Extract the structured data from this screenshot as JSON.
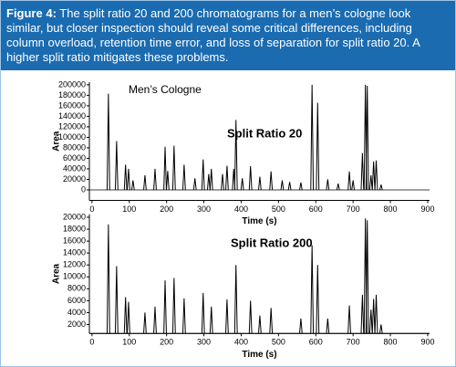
{
  "figure": {
    "label": "Figure 4:",
    "caption": "The split ratio 20 and 200 chromatograms for a men’s cologne look similar, but closer inspection should reveal some critical differences, including column overload, retention time error, and loss of separation for split ratio 20. A higher split ratio mitigates these problems."
  },
  "chart_data": [
    {
      "type": "chromatogram",
      "annotations": [
        "Men’s Cologne",
        "Split Ratio 20"
      ],
      "xlabel": "Time (s)",
      "ylabel": "Area",
      "color": "#000000",
      "x": [
        44,
        66,
        90,
        98,
        110,
        142,
        169,
        196,
        203,
        220,
        247,
        276,
        298,
        313,
        320,
        350,
        362,
        380,
        386,
        403,
        425,
        450,
        480,
        510,
        530,
        560,
        590,
        605,
        632,
        660,
        690,
        700,
        725,
        733,
        738,
        748,
        755,
        762,
        775
      ],
      "values": [
        183000,
        93000,
        48000,
        40000,
        18000,
        28000,
        40000,
        82000,
        36000,
        84000,
        48000,
        22000,
        58000,
        30000,
        40000,
        30000,
        46000,
        40000,
        133000,
        22000,
        45000,
        25000,
        35000,
        18000,
        15000,
        14000,
        200000,
        166000,
        20000,
        12000,
        35000,
        18000,
        70000,
        200000,
        198000,
        28000,
        54000,
        56000,
        10000
      ],
      "xlim": [
        -7,
        905
      ],
      "xticks": [
        0,
        100,
        200,
        300,
        400,
        500,
        600,
        700,
        800,
        900
      ],
      "ylim": [
        -20000,
        205000
      ],
      "yticks": [
        0,
        20000,
        40000,
        60000,
        80000,
        100000,
        120000,
        140000,
        160000,
        180000,
        200000
      ]
    },
    {
      "type": "chromatogram",
      "annotations": [
        "Split Ratio 200"
      ],
      "xlabel": "Time (s)",
      "ylabel": "Area",
      "color": "#000000",
      "x": [
        44,
        66,
        90,
        98,
        142,
        169,
        196,
        220,
        247,
        298,
        320,
        362,
        386,
        425,
        450,
        480,
        560,
        590,
        605,
        632,
        690,
        725,
        733,
        738,
        748,
        755,
        762,
        775
      ],
      "values": [
        18800,
        11800,
        6600,
        5800,
        4000,
        5000,
        9400,
        9800,
        6400,
        7300,
        5000,
        6200,
        12000,
        6000,
        3500,
        4800,
        3000,
        15300,
        12000,
        3000,
        5200,
        7000,
        19800,
        19500,
        4500,
        6300,
        7000,
        2000
      ],
      "xlim": [
        -7,
        905
      ],
      "xticks": [
        0,
        100,
        200,
        300,
        400,
        500,
        600,
        700,
        800,
        900
      ],
      "ylim": [
        500,
        20500
      ],
      "yticks": [
        2000,
        4000,
        6000,
        8000,
        10000,
        12000,
        14000,
        16000,
        18000,
        20000
      ]
    }
  ]
}
